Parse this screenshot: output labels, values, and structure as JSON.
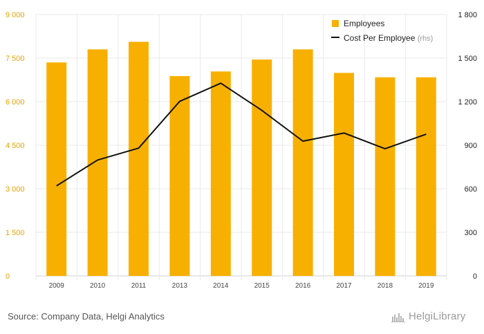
{
  "chart_data": {
    "type": "bar",
    "categories": [
      "2009",
      "2010",
      "2011",
      "2013",
      "2014",
      "2015",
      "2016",
      "2017",
      "2018",
      "2019"
    ],
    "series": [
      {
        "name": "Employees",
        "type": "bar",
        "axis": "left",
        "color": "#f8b000",
        "values": [
          7350,
          7800,
          8060,
          6880,
          7040,
          7450,
          7800,
          6990,
          6840,
          6840
        ]
      },
      {
        "name": "Cost Per Employee",
        "type": "line",
        "axis": "right",
        "color": "#111111",
        "values": [
          620,
          798,
          880,
          1202,
          1327,
          1140,
          928,
          984,
          876,
          976
        ]
      }
    ],
    "y_left": {
      "min": 0,
      "max": 9000,
      "ticks": [
        "0",
        "1 500",
        "3 000",
        "4 500",
        "6 000",
        "7 500",
        "9 000"
      ],
      "color": "#e8a200"
    },
    "y_right": {
      "min": 0,
      "max": 1800,
      "ticks": [
        "0",
        "300",
        "600",
        "900",
        "1 200",
        "1 500",
        "1 800"
      ],
      "color": "#222222"
    },
    "legend": {
      "position": "top-right",
      "rhs_suffix": "(rhs)"
    },
    "grid": true
  },
  "footer": {
    "source": "Source: Company Data, Helgi Analytics",
    "brand": "HelgiLibrary"
  }
}
